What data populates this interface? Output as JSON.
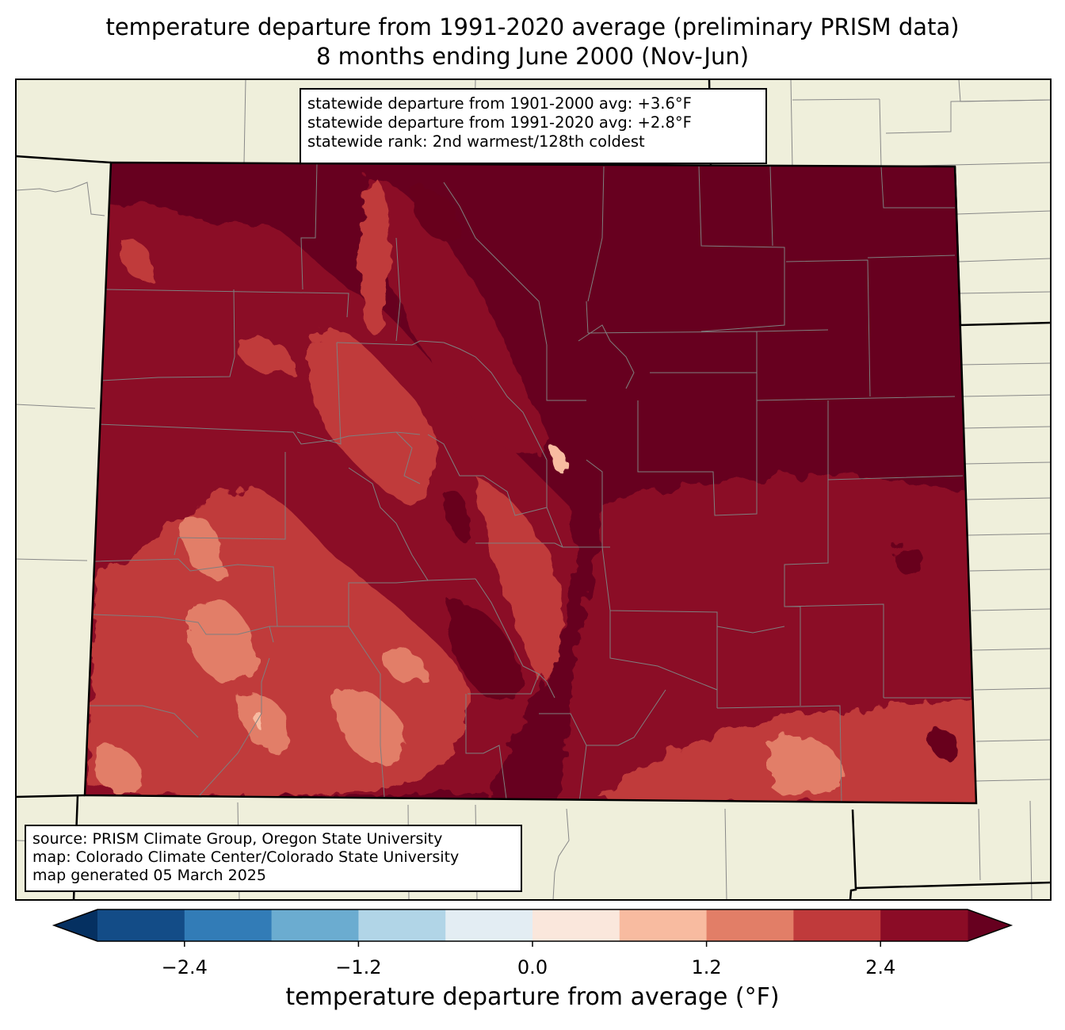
{
  "title": {
    "line1": "temperature departure from 1991-2020 average (preliminary PRISM data)",
    "line2": "8 months ending June 2000 (Nov-Jun)"
  },
  "stats": {
    "line1": "statewide departure from 1901-2000 avg: +3.6°F",
    "line2": "statewide departure from 1991-2020 avg: +2.8°F",
    "line3": "statewide rank: 2nd warmest/128th coldest"
  },
  "source": {
    "line1": "source: PRISM Climate Group, Oregon State University",
    "line2": "map: Colorado Climate Center/Colorado State University",
    "line3": "map generated 05 March 2025"
  },
  "colorbar": {
    "label": "temperature departure from average (°F)",
    "ticks": [
      "−2.4",
      "−1.2",
      "0.0",
      "1.2",
      "2.4"
    ],
    "tick_values": [
      -2.4,
      -1.2,
      0.0,
      1.2,
      2.4
    ],
    "bin_edges": [
      -3.0,
      -2.4,
      -1.8,
      -1.2,
      -0.6,
      0.0,
      0.6,
      1.2,
      1.8,
      2.4,
      3.0
    ],
    "under_color": "#053061",
    "over_color": "#67001f",
    "colors": [
      "#134c87",
      "#327cb7",
      "#6bacd0",
      "#b1d5e7",
      "#e3edf3",
      "#fae7dc",
      "#f8bba0",
      "#e27e67",
      "#c03a3b",
      "#8b0c26"
    ]
  },
  "map_colors": {
    "land": "#efefdb",
    "dominant": "#67001f",
    "high": "#8b0c26",
    "mid": "#c03a3b",
    "low": "#e27e67",
    "lowest": "#f8bba0"
  }
}
